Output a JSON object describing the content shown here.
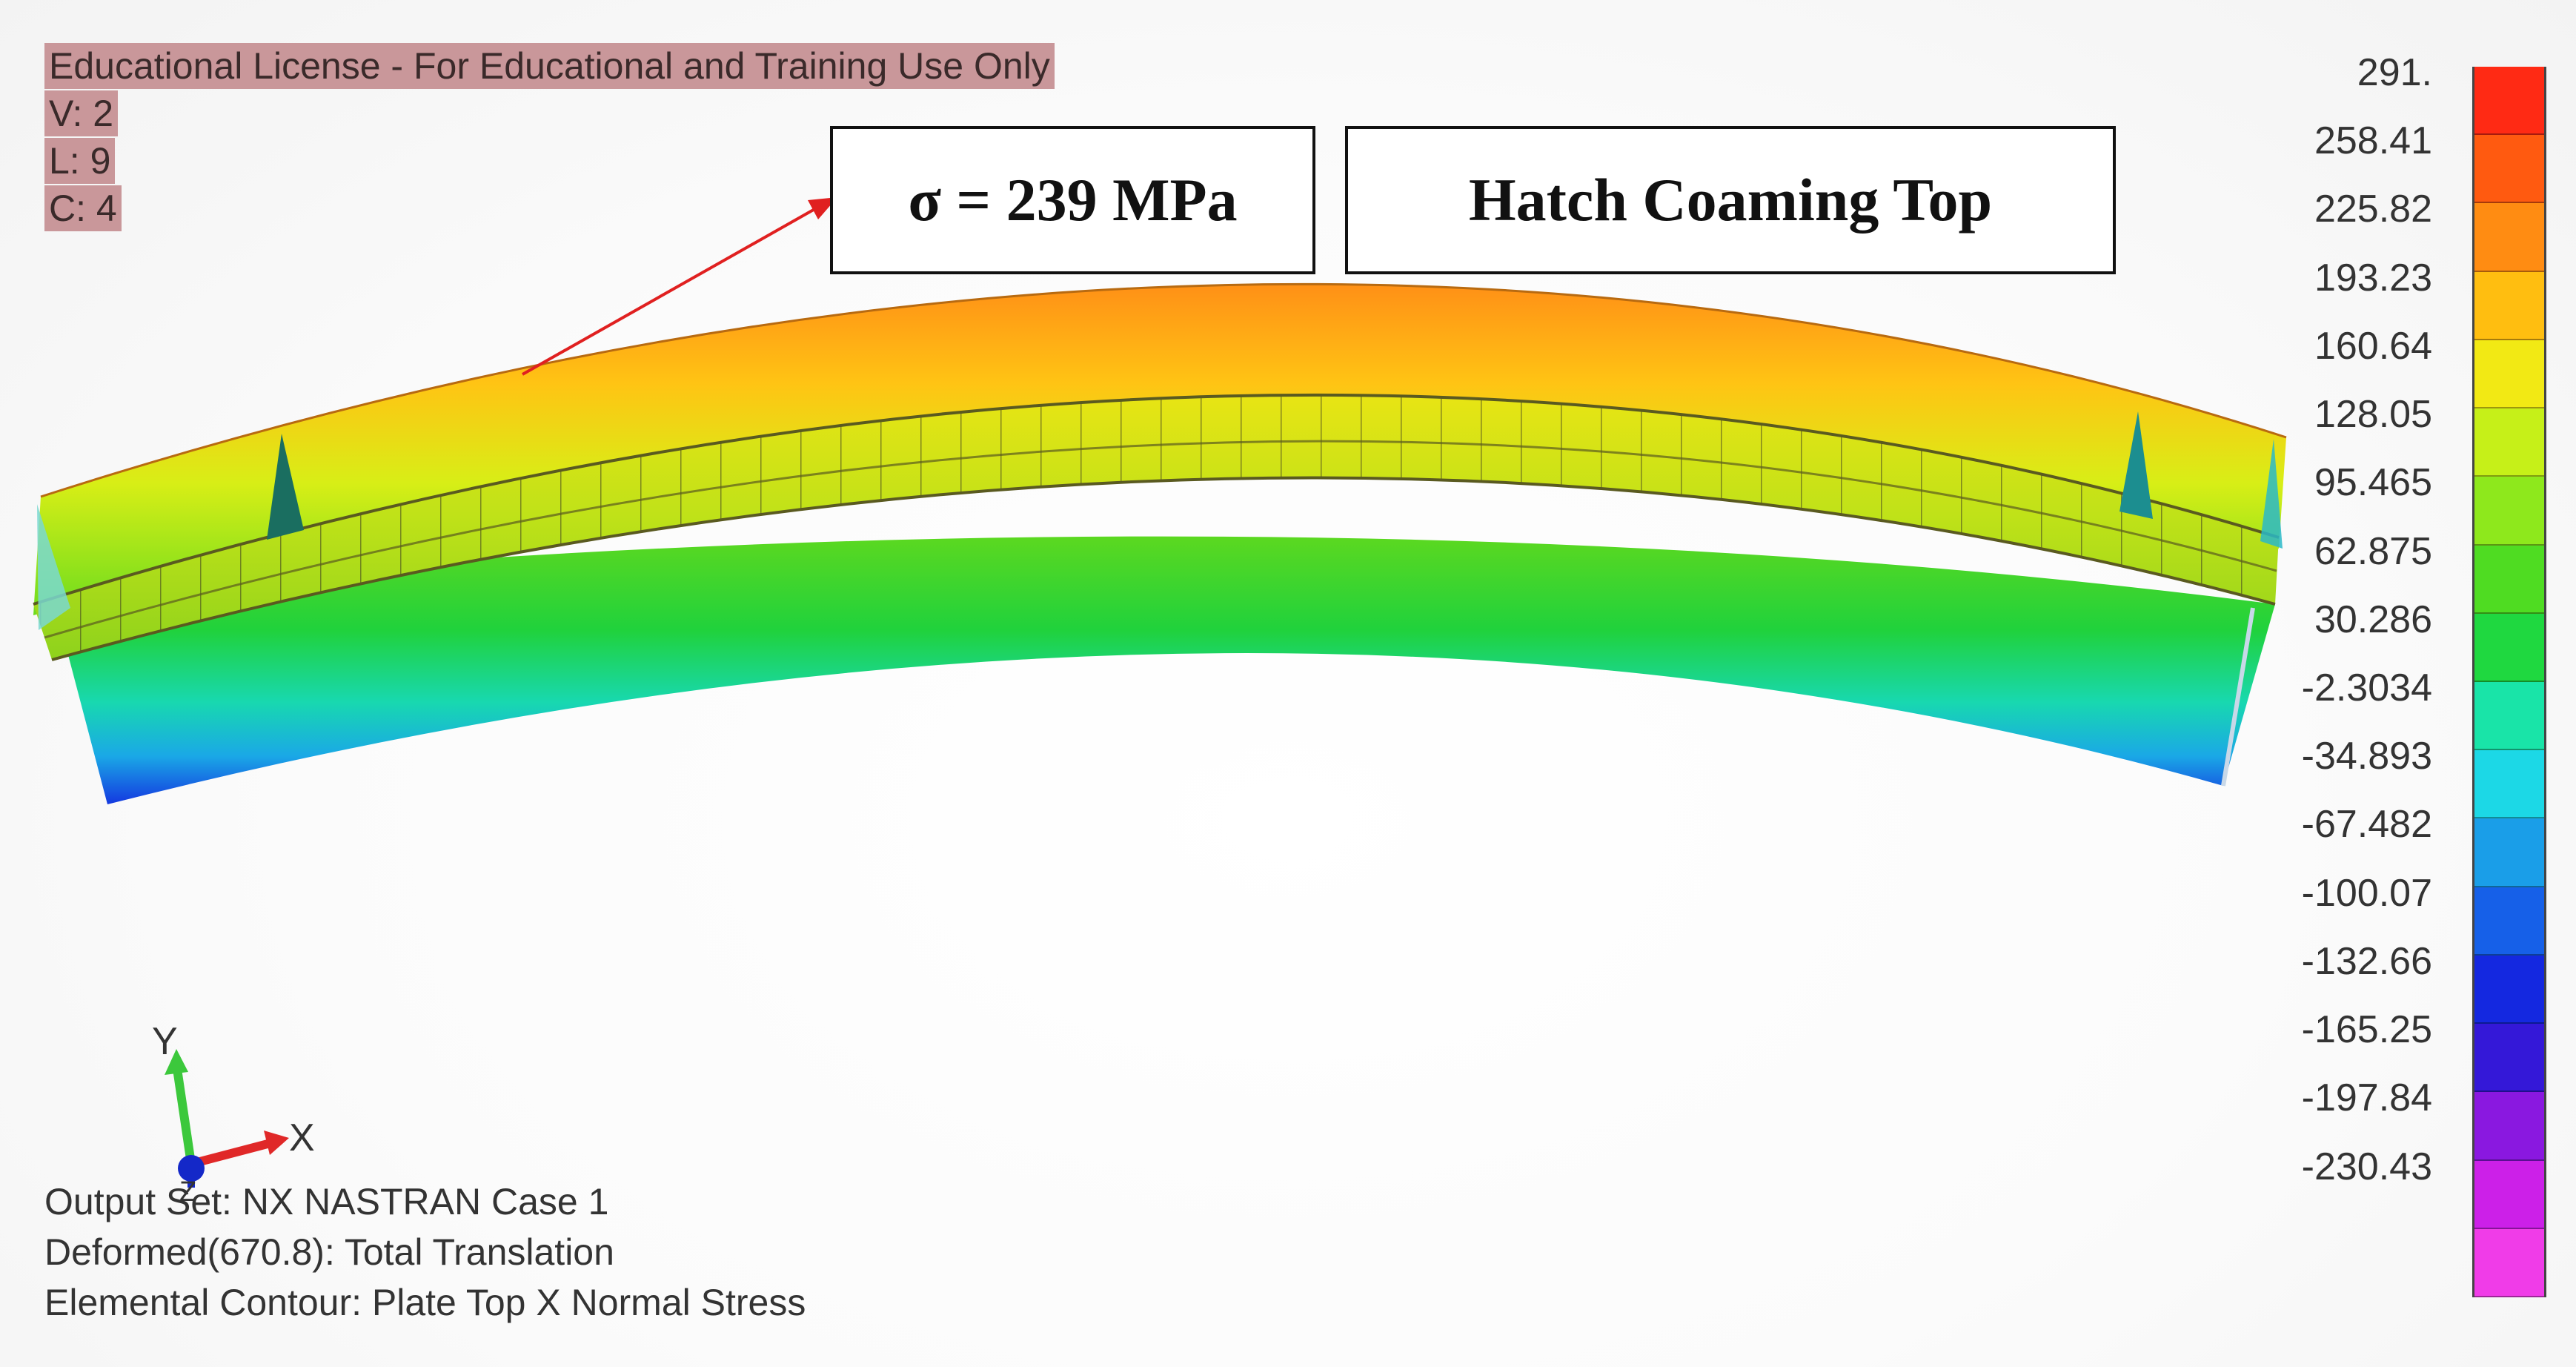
{
  "license": {
    "line1": "Educational License - For Educational and Training Use Only",
    "line2": "V: 2",
    "line3": "L: 9",
    "line4": "C: 4"
  },
  "callouts": {
    "stress": "σ = 239 MPa",
    "location": "Hatch Coaming Top"
  },
  "info": {
    "output_set": "Output Set: NX NASTRAN Case 1",
    "deformed": "Deformed(670.8): Total Translation",
    "contour": "Elemental Contour: Plate Top X Normal Stress"
  },
  "axes": {
    "x": "X",
    "y": "Y",
    "z": "Z"
  },
  "legend": {
    "labels": [
      "291.",
      "258.41",
      "225.82",
      "193.23",
      "160.64",
      "128.05",
      "95.465",
      "62.875",
      "30.286",
      "-2.3034",
      "-34.893",
      "-67.482",
      "-100.07",
      "-132.66",
      "-165.25",
      "-197.84",
      "-230.43"
    ],
    "colors": [
      "#ff2a14",
      "#ff5a10",
      "#ff8c12",
      "#ffbe10",
      "#f2e914",
      "#c6f018",
      "#8ee81c",
      "#4fdc22",
      "#1fd840",
      "#19e4a8",
      "#1cd8e6",
      "#1a9ee8",
      "#1660e8",
      "#1428e0",
      "#3418d8",
      "#8a18e0",
      "#cc20e8",
      "#f03ce8"
    ]
  }
}
